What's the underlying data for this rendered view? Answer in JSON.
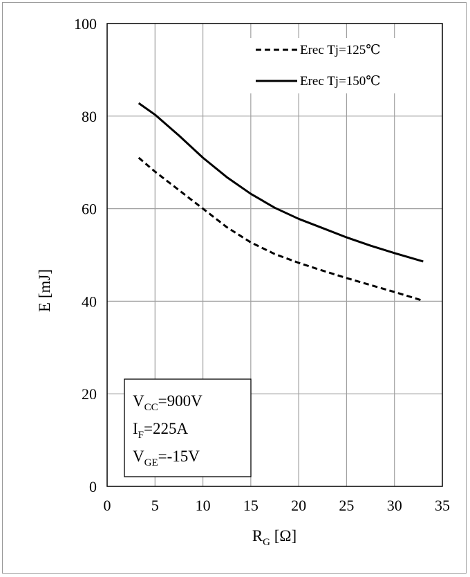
{
  "chart_data": {
    "type": "line",
    "title": "",
    "xlabel": {
      "main": "R",
      "sub": "G",
      "rest": " [Ω]"
    },
    "ylabel": "E [mJ]",
    "xlim": [
      0,
      35
    ],
    "ylim": [
      0,
      100
    ],
    "xticks": [
      0,
      5,
      10,
      15,
      20,
      25,
      30,
      35
    ],
    "yticks": [
      0,
      20,
      40,
      60,
      80,
      100
    ],
    "grid": true,
    "legend_position": "top-right",
    "series": [
      {
        "name": "Erec Tj=125℃",
        "style": "dashed",
        "color": "#000000",
        "x": [
          3.3,
          5,
          7.5,
          10,
          12.5,
          15,
          17.5,
          20,
          22.5,
          25,
          27.5,
          30,
          33
        ],
        "y": [
          71,
          68,
          64,
          60,
          56,
          52.7,
          50.2,
          48.3,
          46.6,
          45.0,
          43.5,
          42.0,
          40.1
        ]
      },
      {
        "name": "Erec Tj=150℃",
        "style": "solid",
        "color": "#000000",
        "x": [
          3.3,
          5,
          7.5,
          10,
          12.5,
          15,
          17.5,
          20,
          22.5,
          25,
          27.5,
          30,
          33
        ],
        "y": [
          82.8,
          80.3,
          75.8,
          71.0,
          66.8,
          63.2,
          60.2,
          57.8,
          55.8,
          53.8,
          52.0,
          50.4,
          48.6
        ]
      }
    ],
    "conditions": [
      {
        "main": "V",
        "sub": "CC",
        "rest": "=900V"
      },
      {
        "main": "I",
        "sub": "F",
        "rest": "=225A"
      },
      {
        "main": "V",
        "sub": "GE",
        "rest": "=-15V"
      }
    ]
  }
}
